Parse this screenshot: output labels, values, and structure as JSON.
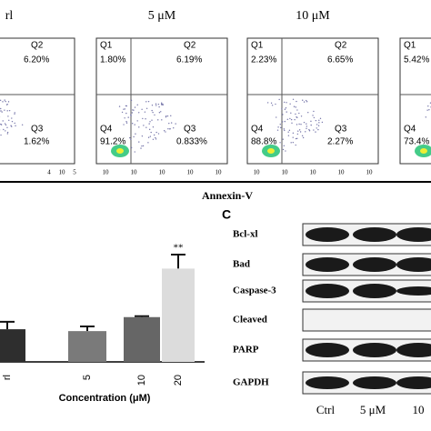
{
  "flow": {
    "panels": [
      {
        "title": "rl",
        "quadrants": {
          "Q2": "6.20%",
          "Q3": "1.62%"
        },
        "q_names": [
          "Q2",
          "Q3"
        ],
        "xticks": [
          "4",
          "10",
          "5"
        ]
      },
      {
        "title": "5 μM",
        "quadrants": {
          "Q1": "1.80%",
          "Q2": "6.19%",
          "Q4": "91.2%",
          "Q3": "0.833%"
        },
        "q_names": [
          "Q1",
          "Q2",
          "Q4",
          "Q3"
        ],
        "xticks": [
          "10",
          "10",
          "10",
          "10",
          "10"
        ]
      },
      {
        "title": "10 μM",
        "quadrants": {
          "Q1": "2.23%",
          "Q2": "6.65%",
          "Q4": "88.8%",
          "Q3": "2.27%"
        },
        "q_names": [
          "Q1",
          "Q2",
          "Q4",
          "Q3"
        ],
        "xticks": [
          "10",
          "10",
          "10",
          "10",
          "10"
        ]
      },
      {
        "title": "",
        "quadrants": {
          "Q1": "5.42%",
          "Q4": "73.4%"
        },
        "q_names": [
          "Q1",
          "Q4"
        ],
        "xticks": []
      }
    ],
    "xlabel": "Annexin-V"
  },
  "chart_data": {
    "type": "bar",
    "xlabel": "Concentration (μM)",
    "categories": [
      "rl",
      "5",
      "10",
      "20"
    ],
    "values": [
      35,
      33,
      48,
      100
    ],
    "errors": [
      8,
      5,
      1,
      15
    ],
    "colors": [
      "#2e2e2e",
      "#7a7a7a",
      "#666666",
      "#dcdcdc"
    ],
    "ylim": [
      0,
      115
    ],
    "annotation": "**"
  },
  "blot": {
    "label": "C",
    "rows": [
      "Bcl-xl",
      "Bad",
      "Caspase-3",
      "Cleaved",
      "PARP",
      "GAPDH"
    ],
    "lanes": [
      "Ctrl",
      "5 μM",
      "10"
    ]
  }
}
